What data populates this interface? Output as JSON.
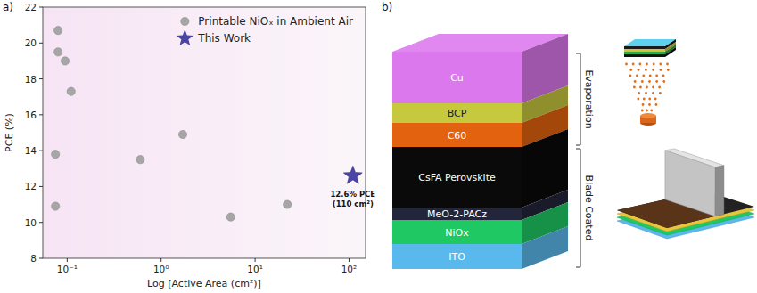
{
  "chart_data": {
    "type": "scatter",
    "panel_label": "a)",
    "xlabel": "Log [Active Area (cm²)]",
    "ylabel": "PCE (%)",
    "log": "x",
    "xlim": [
      0.055,
      150
    ],
    "xticks": [
      {
        "value": 0.1,
        "label": "10⁻¹"
      },
      {
        "value": 1,
        "label": "10⁰"
      },
      {
        "value": 10,
        "label": "10¹"
      },
      {
        "value": 100,
        "label": "10²"
      }
    ],
    "ylim": [
      8,
      22
    ],
    "yticks": [
      8,
      10,
      12,
      14,
      16,
      18,
      20,
      22
    ],
    "grid": false,
    "legend": "upper right",
    "series": [
      {
        "name": "Printable NiOₓ in Ambient Air",
        "color": "#a6a6a6",
        "marker": "circle",
        "x": [
          0.08,
          0.08,
          0.095,
          0.11,
          0.075,
          0.075,
          0.6,
          1.7,
          5.5,
          22
        ],
        "values": [
          20.7,
          19.5,
          19.0,
          17.3,
          13.8,
          10.9,
          13.5,
          14.9,
          10.3,
          11.0
        ]
      },
      {
        "name": "This Work",
        "color": "#4a44a6",
        "marker": "star",
        "x": [
          110
        ],
        "values": [
          12.6
        ],
        "value_labels": [
          "12.6% PCE\n(110 cm²)"
        ]
      }
    ]
  },
  "diagram": {
    "panel_label": "b)",
    "groups": [
      {
        "label": "Evaporation",
        "layers": [
          {
            "label": "Cu",
            "color": "#dc78ee"
          },
          {
            "label": "BCP",
            "color": "#c6c83e"
          },
          {
            "label": "C60",
            "color": "#e2620f"
          }
        ]
      },
      {
        "label": "Blade Coated",
        "layers": [
          {
            "label": "CsFA Perovskite",
            "color": "#0a0a0a"
          },
          {
            "label": "MeO-2-PACz",
            "color": "#23263a"
          },
          {
            "label": "NiOx",
            "color": "#20c864"
          },
          {
            "label": "ITO",
            "color": "#5ab9ec"
          }
        ]
      }
    ]
  }
}
